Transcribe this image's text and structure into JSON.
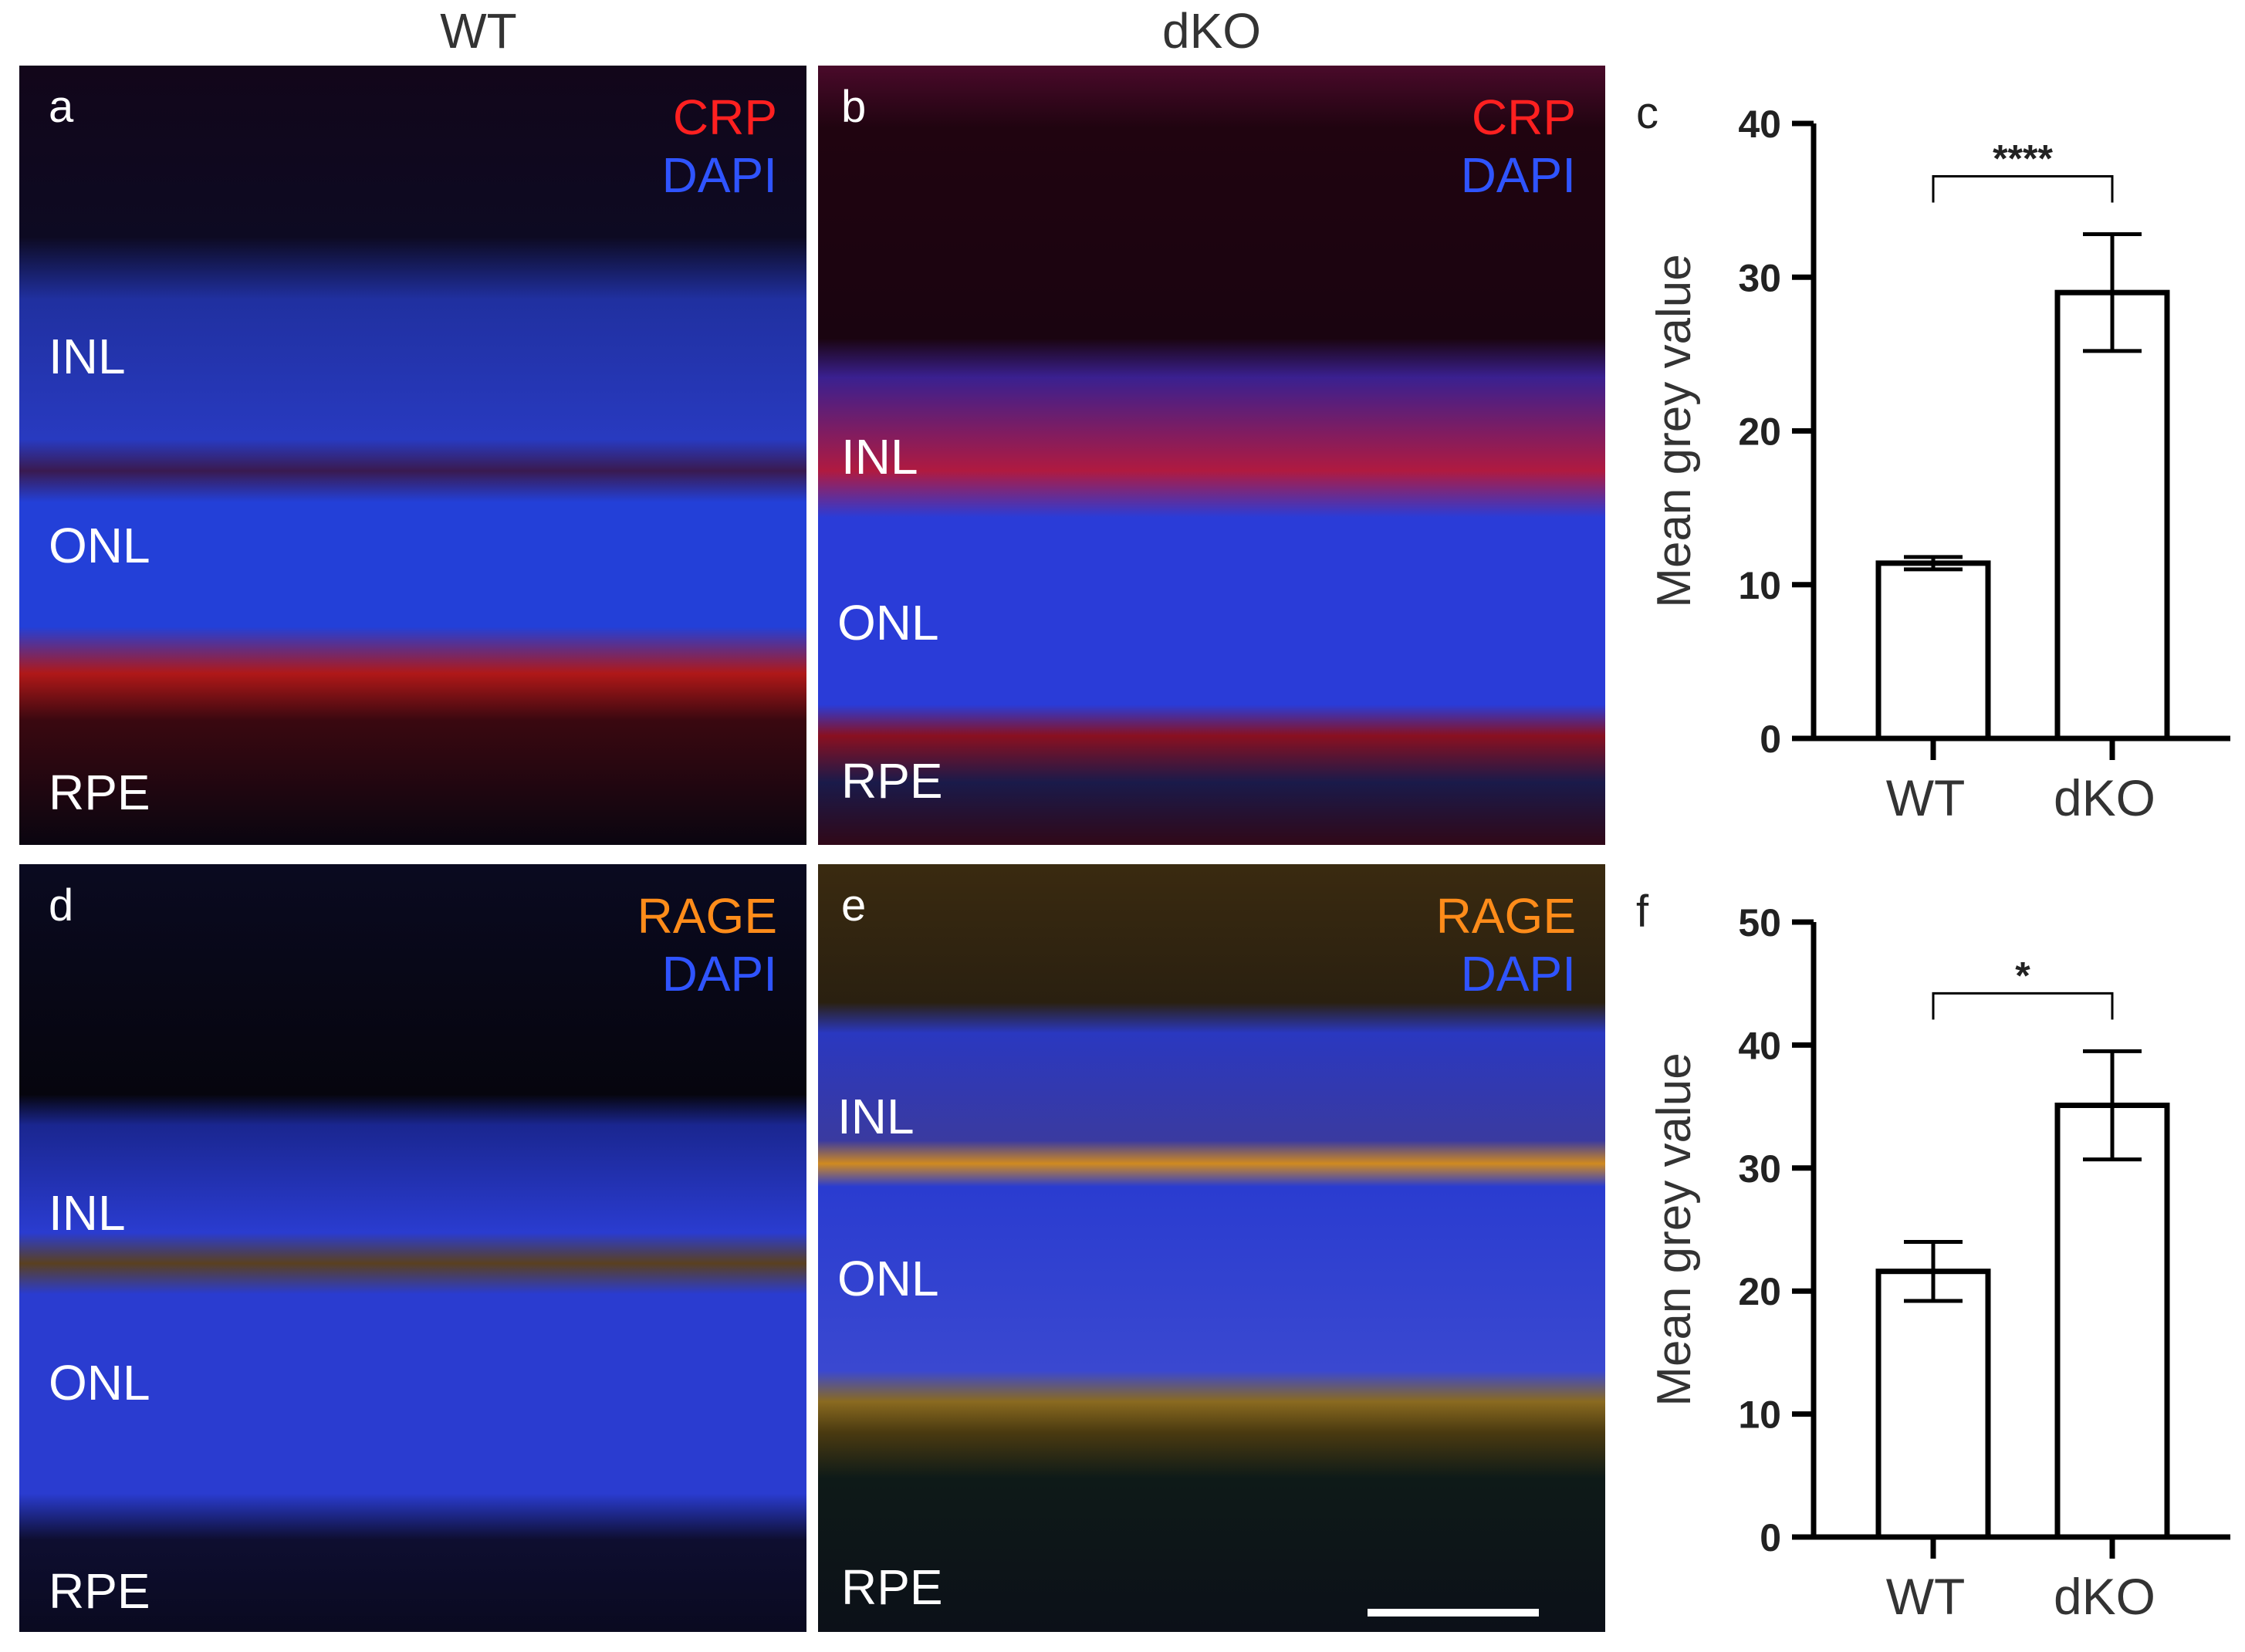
{
  "columns": {
    "left": "WT",
    "right": "dKO"
  },
  "colors": {
    "crp": "#ff2020",
    "dapi": "#2f54ff",
    "rage": "#ff8c1a",
    "panel_bg": "#050510",
    "text_white": "#ffffff"
  },
  "panels": {
    "a": {
      "letter": "a",
      "stain1": "CRP",
      "stain2": "DAPI",
      "layers": [
        "INL",
        "ONL",
        "RPE"
      ]
    },
    "b": {
      "letter": "b",
      "stain1": "CRP",
      "stain2": "DAPI",
      "layers": [
        "INL",
        "ONL",
        "RPE"
      ]
    },
    "d": {
      "letter": "d",
      "stain1": "RAGE",
      "stain2": "DAPI",
      "layers": [
        "INL",
        "ONL",
        "RPE"
      ]
    },
    "e": {
      "letter": "e",
      "stain1": "RAGE",
      "stain2": "DAPI",
      "layers": [
        "INL",
        "ONL",
        "RPE"
      ]
    }
  },
  "chart_data": [
    {
      "panel": "c",
      "type": "bar",
      "categories": [
        "WT",
        "dKO"
      ],
      "values": [
        11.4,
        29.0
      ],
      "errors": [
        0.4,
        3.8
      ],
      "ylabel": "Mean grey value",
      "ylim": [
        0,
        40
      ],
      "yticks": [
        "0",
        "10",
        "20",
        "30",
        "40"
      ],
      "significance": "****",
      "grid": false
    },
    {
      "panel": "f",
      "type": "bar",
      "categories": [
        "WT",
        "dKO"
      ],
      "values": [
        21.6,
        35.1
      ],
      "errors": [
        2.4,
        4.4
      ],
      "ylabel": "Mean grey value",
      "ylim": [
        0,
        50
      ],
      "yticks": [
        "0",
        "10",
        "20",
        "30",
        "40",
        "50"
      ],
      "significance": "*",
      "grid": false
    }
  ]
}
